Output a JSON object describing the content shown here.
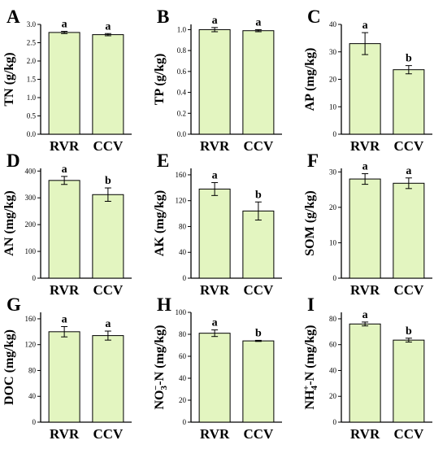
{
  "chart_data": [
    {
      "panel": "A",
      "type": "bar",
      "ylabel": "TN (g/kg)",
      "categories": [
        "RVR",
        "CCV"
      ],
      "values": [
        2.78,
        2.72
      ],
      "errors": [
        0.03,
        0.03
      ],
      "sig": [
        "a",
        "a"
      ],
      "ylim": [
        0,
        3.0
      ],
      "yticks": [
        "0.0",
        "0.5",
        "1.0",
        "1.5",
        "2.0",
        "2.5",
        "3.0"
      ],
      "tickvals": [
        0,
        0.5,
        1.0,
        1.5,
        2.0,
        2.5,
        3.0
      ]
    },
    {
      "panel": "B",
      "type": "bar",
      "ylabel": "TP (g/kg)",
      "categories": [
        "RVR",
        "CCV"
      ],
      "values": [
        1.0,
        0.99
      ],
      "errors": [
        0.02,
        0.01
      ],
      "sig": [
        "a",
        "a"
      ],
      "ylim": [
        0,
        1.05
      ],
      "yticks": [
        "0.0",
        "0.2",
        "0.4",
        "0.6",
        "0.8",
        "1.0"
      ],
      "tickvals": [
        0,
        0.2,
        0.4,
        0.6,
        0.8,
        1.0
      ]
    },
    {
      "panel": "C",
      "type": "bar",
      "ylabel": "AP (mg/kg)",
      "categories": [
        "RVR",
        "CCV"
      ],
      "values": [
        33,
        23.5
      ],
      "errors": [
        4,
        1.5
      ],
      "sig": [
        "a",
        "b"
      ],
      "ylim": [
        0,
        40
      ],
      "yticks": [
        "0",
        "10",
        "20",
        "30",
        "40"
      ],
      "tickvals": [
        0,
        10,
        20,
        30,
        40
      ]
    },
    {
      "panel": "D",
      "type": "bar",
      "ylabel": "AN (mg/kg)",
      "categories": [
        "RVR",
        "CCV"
      ],
      "values": [
        365,
        312
      ],
      "errors": [
        15,
        25
      ],
      "sig": [
        "a",
        "b"
      ],
      "ylim": [
        0,
        410
      ],
      "yticks": [
        "0",
        "100",
        "200",
        "300",
        "400"
      ],
      "tickvals": [
        0,
        100,
        200,
        300,
        400
      ]
    },
    {
      "panel": "E",
      "type": "bar",
      "ylabel": "AK (mg/kg)",
      "categories": [
        "RVR",
        "CCV"
      ],
      "values": [
        138,
        104
      ],
      "errors": [
        10,
        14
      ],
      "sig": [
        "a",
        "b"
      ],
      "ylim": [
        0,
        170
      ],
      "yticks": [
        "0",
        "40",
        "80",
        "120",
        "160"
      ],
      "tickvals": [
        0,
        40,
        80,
        120,
        160
      ]
    },
    {
      "panel": "F",
      "type": "bar",
      "ylabel": "SOM (g/kg)",
      "categories": [
        "RVR",
        "CCV"
      ],
      "values": [
        28,
        26.8
      ],
      "errors": [
        1.5,
        1.5
      ],
      "sig": [
        "a",
        "a"
      ],
      "ylim": [
        0,
        31
      ],
      "yticks": [
        "0",
        "10",
        "20",
        "30"
      ],
      "tickvals": [
        0,
        10,
        20,
        30
      ]
    },
    {
      "panel": "G",
      "type": "bar",
      "ylabel": "DOC (mg/kg)",
      "categories": [
        "RVR",
        "CCV"
      ],
      "values": [
        140,
        134
      ],
      "errors": [
        8,
        7
      ],
      "sig": [
        "a",
        "a"
      ],
      "ylim": [
        0,
        170
      ],
      "yticks": [
        "0",
        "40",
        "80",
        "120",
        "160"
      ],
      "tickvals": [
        0,
        40,
        80,
        120,
        160
      ]
    },
    {
      "panel": "H",
      "type": "bar",
      "ylabel": "NO3−-N (mg/kg)",
      "categories": [
        "RVR",
        "CCV"
      ],
      "values": [
        81,
        74
      ],
      "errors": [
        3,
        0.5
      ],
      "sig": [
        "a",
        "b"
      ],
      "ylim": [
        0,
        100
      ],
      "yticks": [
        "0",
        "20",
        "40",
        "60",
        "80",
        "100"
      ],
      "tickvals": [
        0,
        20,
        40,
        60,
        80,
        100
      ]
    },
    {
      "panel": "I",
      "type": "bar",
      "ylabel": "NH4+-N (mg/kg)",
      "categories": [
        "RVR",
        "CCV"
      ],
      "values": [
        76,
        63.5
      ],
      "errors": [
        1.5,
        1.5
      ],
      "sig": [
        "a",
        "b"
      ],
      "ylim": [
        0,
        85
      ],
      "yticks": [
        "0",
        "20",
        "40",
        "60",
        "80"
      ],
      "tickvals": [
        0,
        20,
        40,
        60,
        80
      ]
    }
  ],
  "style": {
    "bar_fill": "#e3f5c0",
    "bar_stroke": "#000000",
    "axis_color": "#000000"
  }
}
